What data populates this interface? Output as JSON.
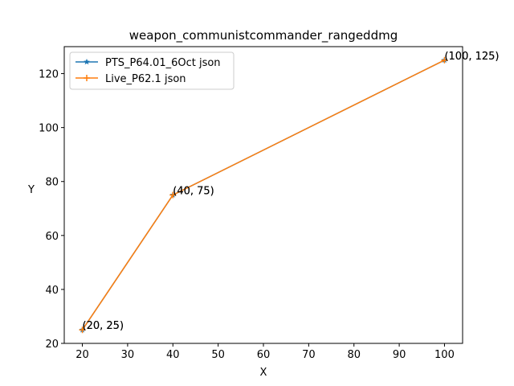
{
  "chart_data": {
    "type": "line",
    "title": "weapon_communistcommander_rangeddmg",
    "xlabel": "X",
    "ylabel": "Y",
    "xlim": [
      16,
      104
    ],
    "ylim": [
      20,
      130
    ],
    "xticks": [
      20,
      30,
      40,
      50,
      60,
      70,
      80,
      90,
      100
    ],
    "yticks": [
      20,
      40,
      60,
      80,
      100,
      120
    ],
    "grid": false,
    "legend_position": "upper-left",
    "series": [
      {
        "name": "PTS_P64.01_6Oct json",
        "x": [
          20,
          40,
          100
        ],
        "y": [
          25,
          75,
          125
        ],
        "color": "#1f77b4",
        "marker": "star"
      },
      {
        "name": "Live_P62.1 json",
        "x": [
          20,
          40,
          100
        ],
        "y": [
          25,
          75,
          125
        ],
        "color": "#ff7f0e",
        "marker": "plus"
      }
    ],
    "annotations": [
      {
        "text": "(20, 25)",
        "x": 20,
        "y": 25
      },
      {
        "text": "(40, 75)",
        "x": 40,
        "y": 75
      },
      {
        "text": "(100, 125)",
        "x": 100,
        "y": 125
      }
    ]
  }
}
